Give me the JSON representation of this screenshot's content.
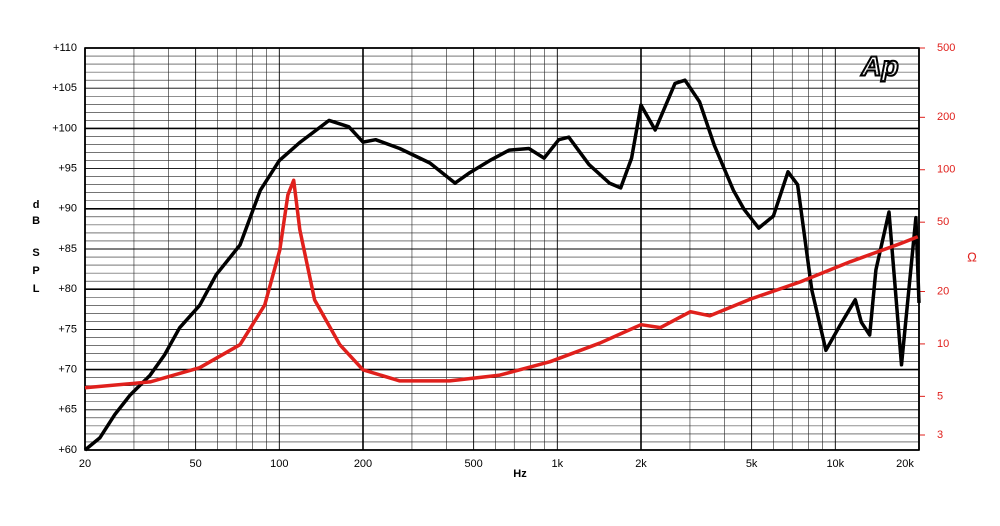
{
  "chart_data": {
    "type": "line",
    "logo": "Ap",
    "xlabel": "Hz",
    "ylabel_lines": [
      "dB",
      "SPL"
    ],
    "y2label": "Ω",
    "xscale": "log",
    "y2scale": "log",
    "xlim": [
      20,
      20000
    ],
    "ylim": [
      60,
      110
    ],
    "y2lim": [
      2.46,
      500
    ],
    "xticks": [
      20,
      50,
      100,
      200,
      500,
      {
        "value": 1000,
        "label": "1k"
      },
      {
        "value": 2000,
        "label": "2k"
      },
      {
        "value": 5000,
        "label": "5k"
      },
      {
        "value": 10000,
        "label": "10k"
      },
      {
        "value": 20000,
        "label": "20k"
      }
    ],
    "yticks": [
      {
        "value": 60,
        "label": "+60"
      },
      {
        "value": 65,
        "label": "+65"
      },
      {
        "value": 70,
        "label": "+70"
      },
      {
        "value": 75,
        "label": "+75"
      },
      {
        "value": 80,
        "label": "+80"
      },
      {
        "value": 85,
        "label": "+85"
      },
      {
        "value": 90,
        "label": "+90"
      },
      {
        "value": 95,
        "label": "+95"
      },
      {
        "value": 100,
        "label": "+100"
      },
      {
        "value": 105,
        "label": "+105"
      },
      {
        "value": 110,
        "label": "+110"
      }
    ],
    "y2ticks": [
      3,
      5,
      10,
      20,
      50,
      100,
      200,
      500
    ],
    "xgrid": [
      30,
      40,
      60,
      70,
      80,
      90,
      300,
      400,
      600,
      700,
      800,
      900,
      3000,
      4000,
      6000,
      7000,
      8000,
      9000
    ],
    "ygrid": [
      61,
      62,
      63,
      64,
      66,
      67,
      68,
      69,
      71,
      72,
      73,
      74,
      76,
      77,
      78,
      79,
      81,
      82,
      83,
      84,
      86,
      87,
      88,
      89,
      91,
      92,
      93,
      94,
      96,
      97,
      98,
      99,
      101,
      102,
      103,
      104,
      106,
      107,
      108,
      109
    ],
    "grid": true,
    "series": [
      {
        "name": "SPL",
        "color": "#000000",
        "axis": "y",
        "x": [
          20,
          22.6,
          25.6,
          29,
          34.3,
          38.6,
          43.8,
          51.7,
          59.3,
          72.2,
          85.4,
          100,
          118,
          151,
          178,
          200,
          222,
          271,
          348,
          429,
          485,
          571,
          672,
          790,
          896,
          1012,
          1100,
          1300,
          1540,
          1690,
          1850,
          2000,
          2250,
          2650,
          2880,
          3250,
          3670,
          4300,
          4700,
          5300,
          5990,
          6760,
          7320,
          8230,
          9250,
          10400,
          11800,
          12400,
          13300,
          14000,
          15600,
          17300,
          19500,
          20000
        ],
        "values": [
          60,
          61.5,
          64.4,
          66.8,
          69.3,
          71.8,
          75.2,
          78,
          81.8,
          85.5,
          92.3,
          96,
          98.2,
          101,
          100.2,
          98.3,
          98.6,
          97.5,
          95.7,
          93.2,
          94.5,
          96,
          97.3,
          97.5,
          96.3,
          98.6,
          98.9,
          95.5,
          93.2,
          92.6,
          96.3,
          102.9,
          99.8,
          105.6,
          106,
          103.3,
          97.9,
          92.3,
          89.9,
          87.6,
          89.1,
          94.6,
          93,
          79.9,
          72.4,
          75.5,
          78.7,
          75.9,
          74.3,
          82.4,
          89.6,
          70.6,
          88.9,
          78.3
        ]
      },
      {
        "name": "Impedance",
        "color": "#e0201c",
        "axis": "y2",
        "x": [
          20,
          34.3,
          51.7,
          72.2,
          88.6,
          100.4,
          107.4,
          112.7,
          118.5,
          134,
          165,
          200,
          271,
          410,
          617,
          942,
          1420,
          2000,
          2350,
          3010,
          3540,
          4960,
          7480,
          11300,
          17100,
          19800
        ],
        "values": [
          5.6,
          6.05,
          7.3,
          9.9,
          16.7,
          34.6,
          71.8,
          87,
          45.3,
          17.9,
          9.9,
          7.1,
          6.13,
          6.13,
          6.6,
          7.9,
          10.1,
          12.9,
          12.4,
          15.3,
          14.5,
          18.1,
          22.7,
          29.6,
          37.6,
          41.2
        ]
      }
    ]
  }
}
